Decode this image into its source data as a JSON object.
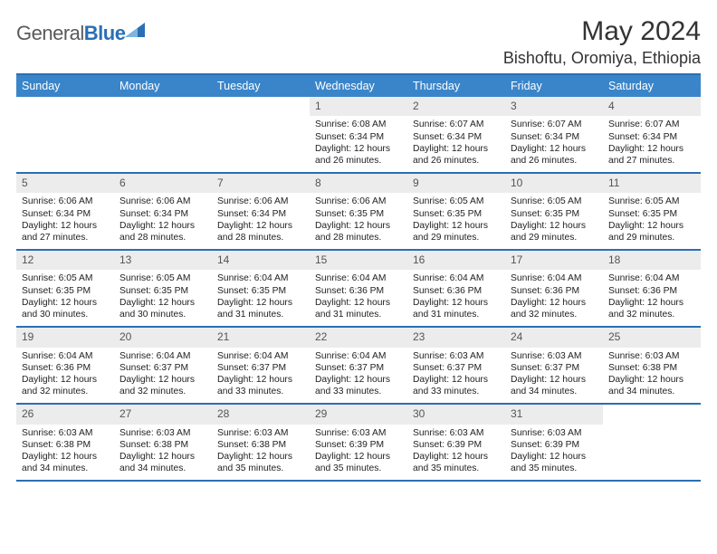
{
  "brand": {
    "name_gray": "General",
    "name_blue": "Blue"
  },
  "title": "May 2024",
  "location": "Bishoftu, Oromiya, Ethiopia",
  "colors": {
    "header_bg": "#3a85c9",
    "border": "#2a6fb5",
    "daynum_bg": "#ececec",
    "text": "#222222",
    "logo_gray": "#5a5a5a"
  },
  "weekdays": [
    "Sunday",
    "Monday",
    "Tuesday",
    "Wednesday",
    "Thursday",
    "Friday",
    "Saturday"
  ],
  "weeks": [
    [
      null,
      null,
      null,
      {
        "n": "1",
        "sr": "6:08 AM",
        "ss": "6:34 PM",
        "dh": "12",
        "dm": "26"
      },
      {
        "n": "2",
        "sr": "6:07 AM",
        "ss": "6:34 PM",
        "dh": "12",
        "dm": "26"
      },
      {
        "n": "3",
        "sr": "6:07 AM",
        "ss": "6:34 PM",
        "dh": "12",
        "dm": "26"
      },
      {
        "n": "4",
        "sr": "6:07 AM",
        "ss": "6:34 PM",
        "dh": "12",
        "dm": "27"
      }
    ],
    [
      {
        "n": "5",
        "sr": "6:06 AM",
        "ss": "6:34 PM",
        "dh": "12",
        "dm": "27"
      },
      {
        "n": "6",
        "sr": "6:06 AM",
        "ss": "6:34 PM",
        "dh": "12",
        "dm": "28"
      },
      {
        "n": "7",
        "sr": "6:06 AM",
        "ss": "6:34 PM",
        "dh": "12",
        "dm": "28"
      },
      {
        "n": "8",
        "sr": "6:06 AM",
        "ss": "6:35 PM",
        "dh": "12",
        "dm": "28"
      },
      {
        "n": "9",
        "sr": "6:05 AM",
        "ss": "6:35 PM",
        "dh": "12",
        "dm": "29"
      },
      {
        "n": "10",
        "sr": "6:05 AM",
        "ss": "6:35 PM",
        "dh": "12",
        "dm": "29"
      },
      {
        "n": "11",
        "sr": "6:05 AM",
        "ss": "6:35 PM",
        "dh": "12",
        "dm": "29"
      }
    ],
    [
      {
        "n": "12",
        "sr": "6:05 AM",
        "ss": "6:35 PM",
        "dh": "12",
        "dm": "30"
      },
      {
        "n": "13",
        "sr": "6:05 AM",
        "ss": "6:35 PM",
        "dh": "12",
        "dm": "30"
      },
      {
        "n": "14",
        "sr": "6:04 AM",
        "ss": "6:35 PM",
        "dh": "12",
        "dm": "31"
      },
      {
        "n": "15",
        "sr": "6:04 AM",
        "ss": "6:36 PM",
        "dh": "12",
        "dm": "31"
      },
      {
        "n": "16",
        "sr": "6:04 AM",
        "ss": "6:36 PM",
        "dh": "12",
        "dm": "31"
      },
      {
        "n": "17",
        "sr": "6:04 AM",
        "ss": "6:36 PM",
        "dh": "12",
        "dm": "32"
      },
      {
        "n": "18",
        "sr": "6:04 AM",
        "ss": "6:36 PM",
        "dh": "12",
        "dm": "32"
      }
    ],
    [
      {
        "n": "19",
        "sr": "6:04 AM",
        "ss": "6:36 PM",
        "dh": "12",
        "dm": "32"
      },
      {
        "n": "20",
        "sr": "6:04 AM",
        "ss": "6:37 PM",
        "dh": "12",
        "dm": "32"
      },
      {
        "n": "21",
        "sr": "6:04 AM",
        "ss": "6:37 PM",
        "dh": "12",
        "dm": "33"
      },
      {
        "n": "22",
        "sr": "6:04 AM",
        "ss": "6:37 PM",
        "dh": "12",
        "dm": "33"
      },
      {
        "n": "23",
        "sr": "6:03 AM",
        "ss": "6:37 PM",
        "dh": "12",
        "dm": "33"
      },
      {
        "n": "24",
        "sr": "6:03 AM",
        "ss": "6:37 PM",
        "dh": "12",
        "dm": "34"
      },
      {
        "n": "25",
        "sr": "6:03 AM",
        "ss": "6:38 PM",
        "dh": "12",
        "dm": "34"
      }
    ],
    [
      {
        "n": "26",
        "sr": "6:03 AM",
        "ss": "6:38 PM",
        "dh": "12",
        "dm": "34"
      },
      {
        "n": "27",
        "sr": "6:03 AM",
        "ss": "6:38 PM",
        "dh": "12",
        "dm": "34"
      },
      {
        "n": "28",
        "sr": "6:03 AM",
        "ss": "6:38 PM",
        "dh": "12",
        "dm": "35"
      },
      {
        "n": "29",
        "sr": "6:03 AM",
        "ss": "6:39 PM",
        "dh": "12",
        "dm": "35"
      },
      {
        "n": "30",
        "sr": "6:03 AM",
        "ss": "6:39 PM",
        "dh": "12",
        "dm": "35"
      },
      {
        "n": "31",
        "sr": "6:03 AM",
        "ss": "6:39 PM",
        "dh": "12",
        "dm": "35"
      },
      null
    ]
  ],
  "labels": {
    "sunrise_prefix": "Sunrise: ",
    "sunset_prefix": "Sunset: ",
    "daylight_prefix": "Daylight: ",
    "hours_word": " hours",
    "and_word": "and ",
    "minutes_word": " minutes."
  }
}
